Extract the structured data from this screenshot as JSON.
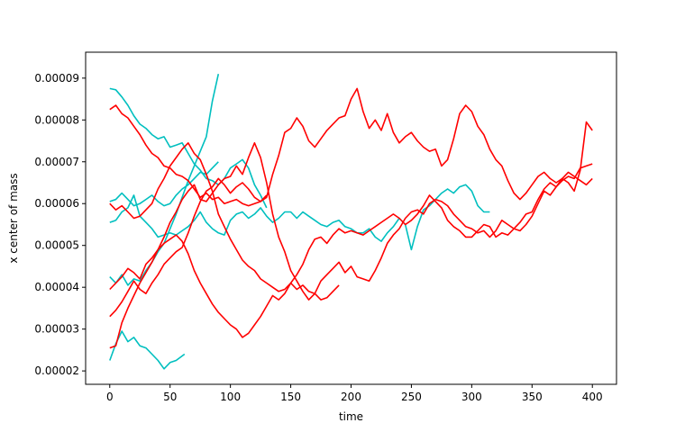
{
  "chart_data": {
    "type": "line",
    "title": "",
    "xlabel": "time",
    "ylabel": "x center of mass",
    "xlim": [
      -20,
      420
    ],
    "ylim": [
      1.68e-05,
      9.62e-05
    ],
    "xticks": [
      0,
      50,
      100,
      150,
      200,
      250,
      300,
      350,
      400
    ],
    "yticks": [
      2e-05,
      3e-05,
      4e-05,
      5e-05,
      6e-05,
      7e-05,
      8e-05,
      9e-05
    ],
    "xtick_labels": [
      "0",
      "50",
      "100",
      "150",
      "200",
      "250",
      "300",
      "350",
      "400"
    ],
    "ytick_labels": [
      "0.00002",
      "0.00003",
      "0.00004",
      "0.00005",
      "0.00006",
      "0.00007",
      "0.00008",
      "0.00009"
    ],
    "grid": false,
    "legend": "none",
    "colors": {
      "cyan": "#00bfbf",
      "red": "#ff0000"
    },
    "series": [
      {
        "color": "#00bfbf",
        "x": [
          0,
          5,
          10,
          15,
          20,
          25,
          30,
          35,
          40,
          45,
          50,
          55,
          62
        ],
        "y": [
          2.25e-05,
          2.65e-05,
          2.95e-05,
          2.7e-05,
          2.8e-05,
          2.6e-05,
          2.55e-05,
          2.4e-05,
          2.25e-05,
          2.05e-05,
          2.2e-05,
          2.25e-05,
          2.4e-05
        ]
      },
      {
        "color": "#00bfbf",
        "x": [
          0,
          5,
          10,
          15,
          20,
          25,
          30,
          35,
          40,
          45,
          50,
          55,
          60,
          65,
          70,
          75,
          80,
          85,
          90
        ],
        "y": [
          4.25e-05,
          4.1e-05,
          4.3e-05,
          4.05e-05,
          4.2e-05,
          4.15e-05,
          4.4e-05,
          4.6e-05,
          4.85e-05,
          5.05e-05,
          5.4e-05,
          5.75e-05,
          6.15e-05,
          6.55e-05,
          6.9e-05,
          7.25e-05,
          7.6e-05,
          8.45e-05,
          9.1e-05
        ]
      },
      {
        "color": "#00bfbf",
        "x": [
          0,
          5,
          10,
          15,
          20,
          25,
          30,
          35,
          40,
          45,
          50,
          55,
          60,
          65,
          70,
          75,
          80,
          85,
          90,
          95,
          100,
          105,
          110,
          115,
          120,
          125,
          130,
          135,
          140,
          145,
          150,
          155,
          160,
          165,
          170,
          175,
          180,
          185,
          190,
          195,
          200,
          205,
          210,
          215,
          220,
          225,
          230,
          235,
          240,
          245,
          250,
          255,
          260,
          265,
          270,
          275,
          280,
          285,
          290,
          295,
          300,
          305,
          310,
          315
        ],
        "y": [
          5.55e-05,
          5.6e-05,
          5.8e-05,
          5.9e-05,
          6.2e-05,
          5.7e-05,
          5.55e-05,
          5.4e-05,
          5.2e-05,
          5.25e-05,
          5.3e-05,
          5.25e-05,
          5.35e-05,
          5.45e-05,
          5.6e-05,
          5.8e-05,
          5.55e-05,
          5.4e-05,
          5.3e-05,
          5.25e-05,
          5.6e-05,
          5.75e-05,
          5.8e-05,
          5.65e-05,
          5.75e-05,
          5.9e-05,
          5.7e-05,
          5.55e-05,
          5.65e-05,
          5.8e-05,
          5.8e-05,
          5.65e-05,
          5.8e-05,
          5.7e-05,
          5.6e-05,
          5.5e-05,
          5.45e-05,
          5.55e-05,
          5.6e-05,
          5.45e-05,
          5.4e-05,
          5.3e-05,
          5.3e-05,
          5.4e-05,
          5.2e-05,
          5.1e-05,
          5.3e-05,
          5.45e-05,
          5.65e-05,
          5.5e-05,
          4.9e-05,
          5.45e-05,
          5.85e-05,
          5.95e-05,
          6.1e-05,
          6.25e-05,
          6.35e-05,
          6.25e-05,
          6.4e-05,
          6.45e-05,
          6.3e-05,
          5.95e-05,
          5.8e-05,
          5.8e-05
        ]
      },
      {
        "color": "#00bfbf",
        "x": [
          0,
          5,
          10,
          15,
          20,
          25,
          30,
          35,
          40,
          45,
          50,
          55,
          60,
          65,
          70,
          75,
          80,
          85,
          90,
          95,
          100,
          105,
          110,
          115,
          120,
          125,
          130
        ],
        "y": [
          8.75e-05,
          8.72e-05,
          8.55e-05,
          8.35e-05,
          8.1e-05,
          7.9e-05,
          7.8e-05,
          7.65e-05,
          7.55e-05,
          7.6e-05,
          7.35e-05,
          7.4e-05,
          7.45e-05,
          7.2e-05,
          6.95e-05,
          6.8e-05,
          6.6e-05,
          6.55e-05,
          6.45e-05,
          6.6e-05,
          6.85e-05,
          6.95e-05,
          7.05e-05,
          6.85e-05,
          6.45e-05,
          6.2e-05,
          5.9e-05
        ]
      },
      {
        "color": "#00bfbf",
        "x": [
          0,
          5,
          10,
          15,
          20,
          25,
          30,
          35,
          40,
          45,
          50,
          55,
          60,
          65,
          70,
          75,
          80,
          85,
          90
        ],
        "y": [
          6.05e-05,
          6.1e-05,
          6.25e-05,
          6.1e-05,
          5.95e-05,
          6e-05,
          6.1e-05,
          6.2e-05,
          6.05e-05,
          5.95e-05,
          6e-05,
          6.2e-05,
          6.35e-05,
          6.45e-05,
          6.6e-05,
          6.75e-05,
          6.7e-05,
          6.85e-05,
          7e-05
        ]
      },
      {
        "color": "#ff0000",
        "x": [
          0,
          5,
          10,
          15,
          20,
          25,
          30,
          35,
          40,
          45,
          50,
          55,
          60,
          65,
          70,
          75,
          80,
          85,
          90,
          95,
          100,
          105,
          110,
          115,
          120,
          125,
          130,
          135,
          140,
          145,
          150,
          155,
          160,
          165,
          170,
          175,
          180,
          185,
          190,
          195,
          200,
          205,
          210,
          215,
          220,
          225,
          230,
          235,
          240,
          245,
          250,
          255,
          260,
          265,
          270,
          275,
          280,
          285,
          290,
          295,
          300,
          305,
          310,
          315,
          320,
          325,
          330,
          335,
          340,
          345,
          350,
          355,
          360,
          365,
          370,
          375,
          380,
          385,
          390,
          395,
          400
        ],
        "y": [
          8.25e-05,
          8.35e-05,
          8.15e-05,
          8.05e-05,
          7.85e-05,
          7.65e-05,
          7.4e-05,
          7.2e-05,
          7.1e-05,
          6.9e-05,
          6.85e-05,
          6.7e-05,
          6.65e-05,
          6.55e-05,
          6.35e-05,
          6.15e-05,
          6.25e-05,
          6.1e-05,
          6.15e-05,
          6e-05,
          6.05e-05,
          6.1e-05,
          6e-05,
          5.95e-05,
          6e-05,
          6.05e-05,
          6.15e-05,
          6.7e-05,
          7.15e-05,
          7.7e-05,
          7.8e-05,
          8.05e-05,
          7.85e-05,
          7.5e-05,
          7.35e-05,
          7.55e-05,
          7.75e-05,
          7.9e-05,
          8.05e-05,
          8.1e-05,
          8.5e-05,
          8.75e-05,
          8.2e-05,
          7.8e-05,
          8e-05,
          7.75e-05,
          8.15e-05,
          7.7e-05,
          7.45e-05,
          7.6e-05,
          7.7e-05,
          7.5e-05,
          7.35e-05,
          7.25e-05,
          7.3e-05,
          6.9e-05,
          7.05e-05,
          7.55e-05,
          8.15e-05,
          8.35e-05,
          8.2e-05,
          7.85e-05,
          7.65e-05,
          7.3e-05,
          7.05e-05,
          6.9e-05,
          6.55e-05,
          6.25e-05,
          6.1e-05,
          6.25e-05,
          6.45e-05,
          6.65e-05,
          6.75e-05,
          6.6e-05,
          6.5e-05,
          6.6e-05,
          6.5e-05,
          6.3e-05,
          6.8e-05,
          7.95e-05,
          7.75e-05
        ]
      },
      {
        "color": "#ff0000",
        "x": [
          0,
          5,
          10,
          15,
          20,
          25,
          30,
          35,
          40,
          45,
          50,
          55,
          60,
          65,
          70,
          75,
          80,
          85,
          90,
          95,
          100,
          105,
          110,
          115,
          120,
          125,
          130,
          135,
          140,
          145,
          150,
          155,
          160,
          165,
          170,
          175,
          180,
          185,
          190,
          195,
          200,
          205,
          210,
          215,
          220,
          225,
          230,
          235,
          240,
          245,
          250,
          255,
          260,
          265,
          270,
          275,
          280,
          285,
          290,
          295,
          300,
          305,
          310,
          315,
          320,
          325,
          330,
          335,
          340,
          345,
          350,
          355,
          360,
          365,
          370,
          375,
          380,
          385,
          390,
          395,
          400
        ],
        "y": [
          6e-05,
          5.85e-05,
          5.95e-05,
          5.8e-05,
          5.65e-05,
          5.7e-05,
          5.85e-05,
          6e-05,
          6.35e-05,
          6.6e-05,
          6.9e-05,
          7.1e-05,
          7.3e-05,
          7.45e-05,
          7.2e-05,
          7.05e-05,
          6.7e-05,
          6.3e-05,
          5.75e-05,
          5.45e-05,
          5.15e-05,
          4.9e-05,
          4.65e-05,
          4.5e-05,
          4.4e-05,
          4.2e-05,
          4.1e-05,
          4e-05,
          3.9e-05,
          3.95e-05,
          4.1e-05,
          4.3e-05,
          4.55e-05,
          4.9e-05,
          5.15e-05,
          5.2e-05,
          5.05e-05,
          5.25e-05,
          5.4e-05,
          5.3e-05,
          5.35e-05,
          5.3e-05,
          5.25e-05,
          5.35e-05,
          5.45e-05,
          5.55e-05,
          5.65e-05,
          5.75e-05,
          5.65e-05,
          5.5e-05,
          5.6e-05,
          5.75e-05,
          5.95e-05,
          6.2e-05,
          6.05e-05,
          5.9e-05,
          5.6e-05,
          5.45e-05,
          5.35e-05,
          5.2e-05,
          5.2e-05,
          5.35e-05,
          5.5e-05,
          5.45e-05,
          5.2e-05,
          5.3e-05,
          5.25e-05,
          5.4e-05,
          5.55e-05,
          5.75e-05,
          5.8e-05,
          6.1e-05,
          6.35e-05,
          6.5e-05,
          6.4e-05,
          6.55e-05,
          6.65e-05,
          6.6e-05,
          6.85e-05,
          6.9e-05,
          6.95e-05
        ]
      },
      {
        "color": "#ff0000",
        "x": [
          0,
          5,
          10,
          15,
          20,
          25,
          30,
          35,
          40,
          45,
          50,
          55,
          60,
          65,
          70,
          75,
          80,
          85,
          90,
          95,
          100,
          105,
          110,
          115,
          120,
          125,
          130,
          135,
          140,
          145,
          150,
          155,
          160,
          165,
          170,
          175,
          180,
          185,
          190,
          195,
          200,
          205,
          210,
          215,
          220,
          225,
          230,
          235,
          240,
          245,
          250,
          255,
          260,
          265,
          270,
          275,
          280,
          285,
          290,
          295,
          300,
          305,
          310,
          315,
          320,
          325,
          330,
          335,
          340,
          345,
          350,
          355,
          360,
          365,
          370,
          375,
          380,
          385,
          390,
          395,
          400
        ],
        "y": [
          2.55e-05,
          2.6e-05,
          3.15e-05,
          3.5e-05,
          3.8e-05,
          4.1e-05,
          4.35e-05,
          4.6e-05,
          4.9e-05,
          5.2e-05,
          5.55e-05,
          5.8e-05,
          6.1e-05,
          6.3e-05,
          6.45e-05,
          6.1e-05,
          6.05e-05,
          6.25e-05,
          6.45e-05,
          6.6e-05,
          6.65e-05,
          6.9e-05,
          6.7e-05,
          7.1e-05,
          7.45e-05,
          7.1e-05,
          6.5e-05,
          5.75e-05,
          5.2e-05,
          4.85e-05,
          4.4e-05,
          4.15e-05,
          3.9e-05,
          3.7e-05,
          3.85e-05,
          4.15e-05,
          4.3e-05,
          4.45e-05,
          4.6e-05,
          4.35e-05,
          4.5e-05,
          4.25e-05,
          4.2e-05,
          4.15e-05,
          4.4e-05,
          4.7e-05,
          5.05e-05,
          5.25e-05,
          5.4e-05,
          5.65e-05,
          5.8e-05,
          5.85e-05,
          5.75e-05,
          6e-05,
          6.1e-05,
          6.05e-05,
          5.95e-05,
          5.75e-05,
          5.6e-05,
          5.45e-05,
          5.4e-05,
          5.3e-05,
          5.35e-05,
          5.2e-05,
          5.35e-05,
          5.6e-05,
          5.5e-05,
          5.4e-05,
          5.35e-05,
          5.5e-05,
          5.7e-05,
          6e-05,
          6.3e-05,
          6.2e-05,
          6.4e-05,
          6.6e-05,
          6.75e-05,
          6.65e-05,
          6.55e-05,
          6.45e-05,
          6.6e-05
        ]
      },
      {
        "color": "#ff0000",
        "x": [
          0,
          5,
          10,
          15,
          20,
          25,
          30,
          35,
          40,
          45,
          50,
          55,
          60,
          65,
          70,
          75,
          80,
          85,
          90,
          95,
          100,
          105,
          110,
          115,
          120,
          125,
          130
        ],
        "y": [
          3.3e-05,
          3.45e-05,
          3.65e-05,
          3.9e-05,
          4.15e-05,
          3.95e-05,
          3.85e-05,
          4.1e-05,
          4.3e-05,
          4.55e-05,
          4.7e-05,
          4.85e-05,
          4.95e-05,
          5.3e-05,
          5.7e-05,
          6.05e-05,
          6.3e-05,
          6.4e-05,
          6.6e-05,
          6.45e-05,
          6.25e-05,
          6.4e-05,
          6.5e-05,
          6.35e-05,
          6.15e-05,
          6.05e-05,
          6.2e-05
        ]
      },
      {
        "color": "#ff0000",
        "x": [
          0,
          5,
          10,
          15,
          20,
          25,
          30,
          35,
          40,
          45,
          50,
          55,
          60,
          65,
          70,
          75,
          80,
          85,
          90,
          95,
          100,
          105,
          110,
          115,
          120,
          125,
          130,
          135,
          140,
          145,
          150,
          155,
          160,
          165,
          170,
          175,
          180,
          185,
          190
        ],
        "y": [
          3.95e-05,
          4.1e-05,
          4.25e-05,
          4.45e-05,
          4.35e-05,
          4.2e-05,
          4.55e-05,
          4.7e-05,
          4.9e-05,
          5.05e-05,
          5.15e-05,
          5.25e-05,
          5.1e-05,
          4.8e-05,
          4.4e-05,
          4.1e-05,
          3.85e-05,
          3.6e-05,
          3.4e-05,
          3.25e-05,
          3.1e-05,
          3e-05,
          2.8e-05,
          2.9e-05,
          3.1e-05,
          3.3e-05,
          3.55e-05,
          3.8e-05,
          3.7e-05,
          3.85e-05,
          4.1e-05,
          3.95e-05,
          4.05e-05,
          3.9e-05,
          3.85e-05,
          3.7e-05,
          3.75e-05,
          3.9e-05,
          4.05e-05
        ]
      }
    ]
  }
}
